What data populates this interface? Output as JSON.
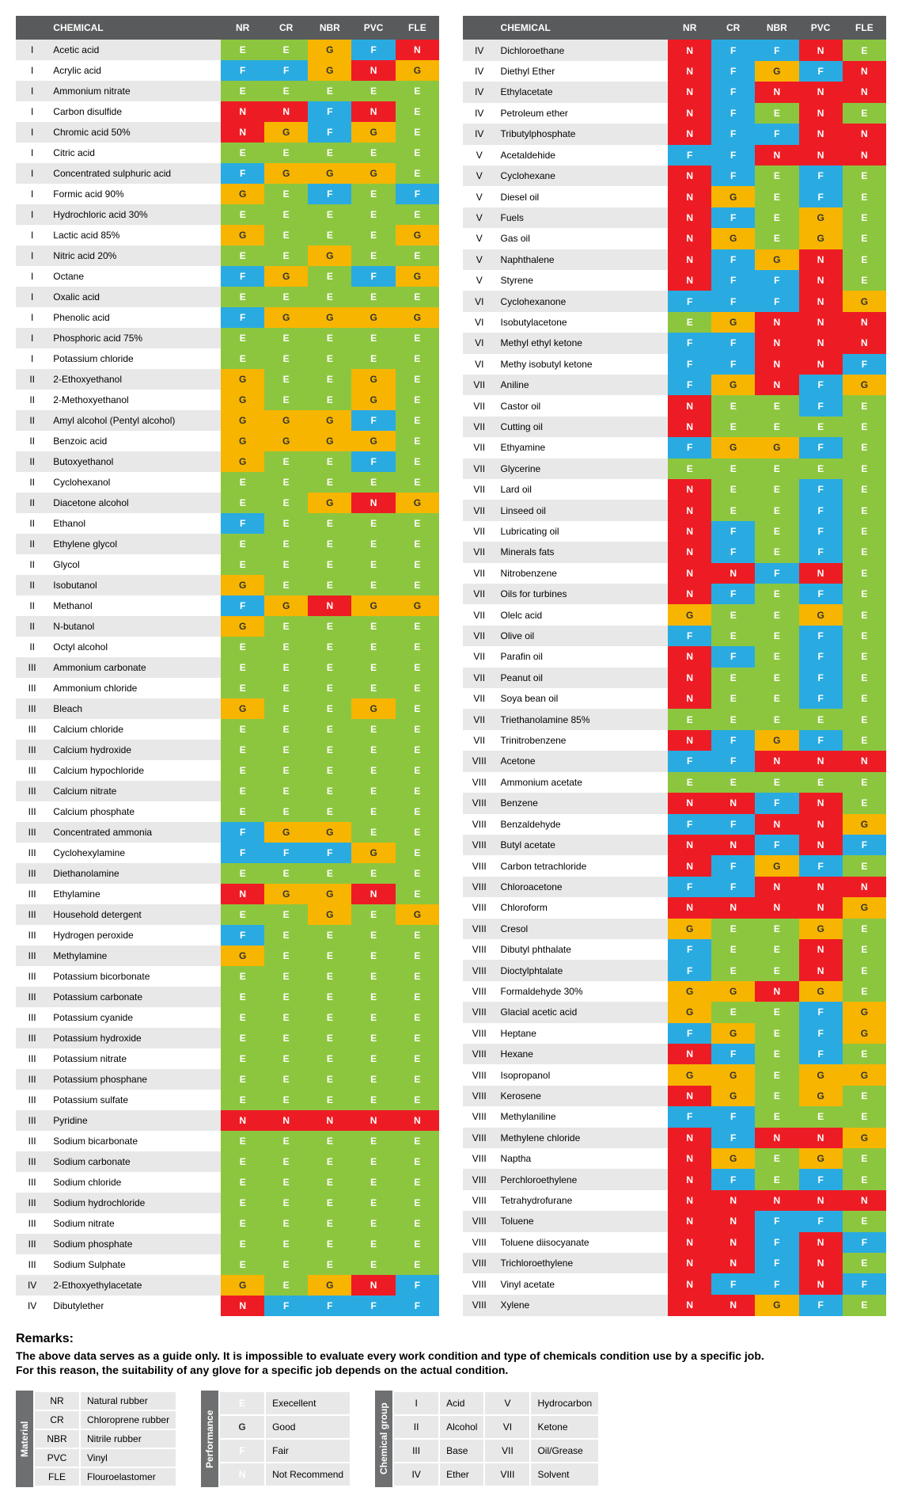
{
  "columns": [
    "NR",
    "CR",
    "NBR",
    "PVC",
    "FLE"
  ],
  "chemLabel": "CHEMICAL",
  "table1": [
    [
      "I",
      "Acetic acid",
      "E",
      "E",
      "G",
      "F",
      "N"
    ],
    [
      "I",
      "Acrylic acid",
      "F",
      "F",
      "G",
      "N",
      "G"
    ],
    [
      "I",
      "Ammonium nitrate",
      "E",
      "E",
      "E",
      "E",
      "E"
    ],
    [
      "I",
      "Carbon disulfide",
      "N",
      "N",
      "F",
      "N",
      "E"
    ],
    [
      "I",
      "Chromic acid 50%",
      "N",
      "G",
      "F",
      "G",
      "E"
    ],
    [
      "I",
      "Citric acid",
      "E",
      "E",
      "E",
      "E",
      "E"
    ],
    [
      "I",
      "Concentrated sulphuric acid",
      "F",
      "G",
      "G",
      "G",
      "E"
    ],
    [
      "I",
      "Formic acid 90%",
      "G",
      "E",
      "F",
      "E",
      "F"
    ],
    [
      "I",
      "Hydrochloric acid 30%",
      "E",
      "E",
      "E",
      "E",
      "E"
    ],
    [
      "I",
      "Lactic acid 85%",
      "G",
      "E",
      "E",
      "E",
      "G"
    ],
    [
      "I",
      "Nitric acid 20%",
      "E",
      "E",
      "G",
      "E",
      "E"
    ],
    [
      "I",
      "Octane",
      "F",
      "G",
      "E",
      "F",
      "G"
    ],
    [
      "I",
      "Oxalic acid",
      "E",
      "E",
      "E",
      "E",
      "E"
    ],
    [
      "I",
      "Phenolic acid",
      "F",
      "G",
      "G",
      "G",
      "G"
    ],
    [
      "I",
      "Phosphoric acid 75%",
      "E",
      "E",
      "E",
      "E",
      "E"
    ],
    [
      "I",
      "Potassium chloride",
      "E",
      "E",
      "E",
      "E",
      "E"
    ],
    [
      "II",
      "2-Ethoxyethanol",
      "G",
      "E",
      "E",
      "G",
      "E"
    ],
    [
      "II",
      "2-Methoxyethanol",
      "G",
      "E",
      "E",
      "G",
      "E"
    ],
    [
      "II",
      "Amyl alcohol (Pentyl alcohol)",
      "G",
      "G",
      "G",
      "F",
      "E"
    ],
    [
      "II",
      "Benzoic acid",
      "G",
      "G",
      "G",
      "G",
      "E"
    ],
    [
      "II",
      "Butoxyethanol",
      "G",
      "E",
      "E",
      "F",
      "E"
    ],
    [
      "II",
      "Cyclohexanol",
      "E",
      "E",
      "E",
      "E",
      "E"
    ],
    [
      "II",
      "Diacetone alcohol",
      "E",
      "E",
      "G",
      "N",
      "G"
    ],
    [
      "II",
      "Ethanol",
      "F",
      "E",
      "E",
      "E",
      "E"
    ],
    [
      "II",
      "Ethylene glycol",
      "E",
      "E",
      "E",
      "E",
      "E"
    ],
    [
      "II",
      "Glycol",
      "E",
      "E",
      "E",
      "E",
      "E"
    ],
    [
      "II",
      " Isobutanol",
      "G",
      "E",
      "E",
      "E",
      "E"
    ],
    [
      "II",
      "Methanol",
      "F",
      "G",
      "N",
      "G",
      "G"
    ],
    [
      "II",
      "N-butanol",
      "G",
      "E",
      "E",
      "E",
      "E"
    ],
    [
      "II",
      "Octyl alcohol",
      "E",
      "E",
      "E",
      "E",
      "E"
    ],
    [
      "III",
      "Ammonium carbonate",
      "E",
      "E",
      "E",
      "E",
      "E"
    ],
    [
      "III",
      "Ammonium chloride",
      "E",
      "E",
      "E",
      "E",
      "E"
    ],
    [
      "III",
      "Bleach",
      "G",
      "E",
      "E",
      "G",
      "E"
    ],
    [
      "III",
      "Calcium chloride",
      "E",
      "E",
      "E",
      "E",
      "E"
    ],
    [
      "III",
      "Calcium hydroxide",
      "E",
      "E",
      "E",
      "E",
      "E"
    ],
    [
      "III",
      "Calcium hypochloride",
      "E",
      "E",
      "E",
      "E",
      "E"
    ],
    [
      "III",
      "Calcium nitrate",
      "E",
      "E",
      "E",
      "E",
      "E"
    ],
    [
      "III",
      "Calcium phosphate",
      "E",
      "E",
      "E",
      "E",
      "E"
    ],
    [
      "III",
      "Concentrated ammonia",
      "F",
      "G",
      "G",
      "E",
      "E"
    ],
    [
      "III",
      "Cyclohexylamine",
      "F",
      "F",
      "F",
      "G",
      "E"
    ],
    [
      "III",
      "Diethanolamine",
      "E",
      "E",
      "E",
      "E",
      "E"
    ],
    [
      "III",
      "Ethylamine",
      "N",
      "G",
      "G",
      "N",
      "E"
    ],
    [
      "III",
      "Household detergent",
      "E",
      "E",
      "G",
      "E",
      "G"
    ],
    [
      "III",
      "Hydrogen peroxide",
      "F",
      "E",
      "E",
      "E",
      "E"
    ],
    [
      "III",
      "Methylamine",
      "G",
      "E",
      "E",
      "E",
      "E"
    ],
    [
      "III",
      "Potassium bicorbonate",
      "E",
      "E",
      "E",
      "E",
      "E"
    ],
    [
      "III",
      "Potassium carbonate",
      "E",
      "E",
      "E",
      "E",
      "E"
    ],
    [
      "III",
      "Potassium cyanide",
      "E",
      "E",
      "E",
      "E",
      "E"
    ],
    [
      "III",
      "Potassium hydroxide",
      "E",
      "E",
      "E",
      "E",
      "E"
    ],
    [
      "III",
      "Potassium nitrate",
      "E",
      "E",
      "E",
      "E",
      "E"
    ],
    [
      "III",
      "Potassium phosphane",
      "E",
      "E",
      "E",
      "E",
      "E"
    ],
    [
      "III",
      "Potassium sulfate",
      "E",
      "E",
      "E",
      "E",
      "E"
    ],
    [
      "III",
      "Pyridine",
      "N",
      "N",
      "N",
      "N",
      "N"
    ],
    [
      "III",
      "Sodium bicarbonate",
      "E",
      "E",
      "E",
      "E",
      "E"
    ],
    [
      "III",
      "Sodium carbonate",
      "E",
      "E",
      "E",
      "E",
      "E"
    ],
    [
      "III",
      "Sodium chloride",
      "E",
      "E",
      "E",
      "E",
      "E"
    ],
    [
      "III",
      "Sodium hydrochloride",
      "E",
      "E",
      "E",
      "E",
      "E"
    ],
    [
      "III",
      "Sodium nitrate",
      "E",
      "E",
      "E",
      "E",
      "E"
    ],
    [
      "III",
      "Sodium phosphate",
      "E",
      "E",
      "E",
      "E",
      "E"
    ],
    [
      "III",
      "Sodium Sulphate",
      "E",
      "E",
      "E",
      "E",
      "E"
    ],
    [
      "IV",
      "2-Ethoxyethylacetate",
      "G",
      "E",
      "G",
      "N",
      "F"
    ],
    [
      "IV",
      "Dibutylether",
      "N",
      "F",
      "F",
      "F",
      "F"
    ]
  ],
  "table2": [
    [
      "IV",
      "Dichloroethane",
      "N",
      "F",
      "F",
      "N",
      "E"
    ],
    [
      "IV",
      "Diethyl Ether",
      "N",
      "F",
      "G",
      "F",
      "N"
    ],
    [
      "IV",
      "Ethylacetate",
      "N",
      "F",
      "N",
      "N",
      "N"
    ],
    [
      "IV",
      "Petroleum ether",
      "N",
      "F",
      "E",
      "N",
      "E"
    ],
    [
      "IV",
      "Tributylphosphate",
      "N",
      "F",
      "F",
      "N",
      "N"
    ],
    [
      "V",
      "Acetaldehide",
      "F",
      "F",
      "N",
      "N",
      "N"
    ],
    [
      "V",
      "Cyclohexane",
      "N",
      "F",
      "E",
      "F",
      "E"
    ],
    [
      "V",
      "Diesel oil",
      "N",
      "G",
      "E",
      "F",
      "E"
    ],
    [
      "V",
      "Fuels",
      "N",
      "F",
      "E",
      "G",
      "E"
    ],
    [
      "V",
      "Gas oil",
      "N",
      "G",
      "E",
      "G",
      "E"
    ],
    [
      "V",
      "Naphthalene",
      "N",
      "F",
      "G",
      "N",
      "E"
    ],
    [
      "V",
      "Styrene",
      "N",
      "F",
      "F",
      "N",
      "E"
    ],
    [
      "VI",
      "Cyclohexanone",
      "F",
      "F",
      "F",
      "N",
      "G"
    ],
    [
      "VI",
      "Isobutylacetone",
      "E",
      "G",
      "N",
      "N",
      "N"
    ],
    [
      "VI",
      "Methyl ethyl ketone",
      "F",
      "F",
      "N",
      "N",
      "N"
    ],
    [
      "VI",
      "Methy isobutyl ketone",
      "F",
      "F",
      "N",
      "N",
      "F"
    ],
    [
      "VII",
      "Aniline",
      "F",
      "G",
      "N",
      "F",
      "G"
    ],
    [
      "VII",
      "Castor oil",
      "N",
      "E",
      "E",
      "F",
      "E"
    ],
    [
      "VII",
      "Cutting oil",
      "N",
      "E",
      "E",
      "E",
      "E"
    ],
    [
      "VII",
      "Ethyamine",
      "F",
      "G",
      "G",
      "F",
      "E"
    ],
    [
      "VII",
      "Glycerine",
      "E",
      "E",
      "E",
      "E",
      "E"
    ],
    [
      "VII",
      "Lard oil",
      "N",
      "E",
      "E",
      "F",
      "E"
    ],
    [
      "VII",
      "Linseed oil",
      "N",
      "E",
      "E",
      "F",
      "E"
    ],
    [
      "VII",
      "Lubricating oil",
      "N",
      "F",
      "E",
      "F",
      "E"
    ],
    [
      "VII",
      "Minerals fats",
      "N",
      "F",
      "E",
      "F",
      "E"
    ],
    [
      "VII",
      "Nitrobenzene",
      "N",
      "N",
      "F",
      "N",
      "E"
    ],
    [
      "VII",
      "Oils for turbines",
      "N",
      "F",
      "E",
      "F",
      "E"
    ],
    [
      "VII",
      "Olelc acid",
      "G",
      "E",
      "E",
      "G",
      "E"
    ],
    [
      "VII",
      "Olive oil",
      "F",
      "E",
      "E",
      "F",
      "E"
    ],
    [
      "VII",
      "Parafin oil",
      "N",
      "F",
      "E",
      "F",
      "E"
    ],
    [
      "VII",
      "Peanut oil",
      "N",
      "E",
      "E",
      "F",
      "E"
    ],
    [
      "VII",
      "Soya bean oil",
      "N",
      "E",
      "E",
      "F",
      "E"
    ],
    [
      "VII",
      "Triethanolamine 85%",
      "E",
      "E",
      "E",
      "E",
      "E"
    ],
    [
      "VII",
      "Trinitrobenzene",
      "N",
      "F",
      "G",
      "F",
      "E"
    ],
    [
      "VIII",
      "Acetone",
      "F",
      "F",
      "N",
      "N",
      "N"
    ],
    [
      "VIII",
      "Ammonium acetate",
      "E",
      "E",
      "E",
      "E",
      "E"
    ],
    [
      "VIII",
      "Benzene",
      "N",
      "N",
      "F",
      "N",
      "E"
    ],
    [
      "VIII",
      "Benzaldehyde",
      "F",
      "F",
      "N",
      "N",
      "G"
    ],
    [
      "VIII",
      "Butyl acetate",
      "N",
      "N",
      "F",
      "N",
      "F"
    ],
    [
      "VIII",
      "Carbon tetrachloride",
      "N",
      "F",
      "G",
      "F",
      "E"
    ],
    [
      "VIII",
      "Chloroacetone",
      "F",
      "F",
      "N",
      "N",
      "N"
    ],
    [
      "VIII",
      "Chloroform",
      "N",
      "N",
      "N",
      "N",
      "G"
    ],
    [
      "VIII",
      "Cresol",
      "G",
      "E",
      "E",
      "G",
      "E"
    ],
    [
      "VIII",
      "Dibutyl phthalate",
      "F",
      "E",
      "E",
      "N",
      "E"
    ],
    [
      "VIII",
      "Dioctylphtalate",
      "F",
      "E",
      "E",
      "N",
      "E"
    ],
    [
      "VIII",
      "Formaldehyde 30%",
      "G",
      "G",
      "N",
      "G",
      "E"
    ],
    [
      "VIII",
      "Glacial acetic acid",
      "G",
      "E",
      "E",
      "F",
      "G"
    ],
    [
      "VIII",
      "Heptane",
      "F",
      "G",
      "E",
      "F",
      "G"
    ],
    [
      "VIII",
      "Hexane",
      "N",
      "F",
      "E",
      "F",
      "E"
    ],
    [
      "VIII",
      "Isopropanol",
      "G",
      "G",
      "E",
      "G",
      "G"
    ],
    [
      "VIII",
      "Kerosene",
      "N",
      "G",
      "E",
      "G",
      "E"
    ],
    [
      "VIII",
      "Methylaniline",
      "F",
      "F",
      "E",
      "E",
      "E"
    ],
    [
      "VIII",
      "Methylene chloride",
      "N",
      "F",
      "N",
      "N",
      "G"
    ],
    [
      "VIII",
      "Naptha",
      "N",
      "G",
      "E",
      "G",
      "E"
    ],
    [
      "VIII",
      "Perchloroethylene",
      "N",
      "F",
      "E",
      "F",
      "E"
    ],
    [
      "VIII",
      "Tetrahydrofurane",
      "N",
      "N",
      "N",
      "N",
      "N"
    ],
    [
      "VIII",
      "Toluene",
      "N",
      "N",
      "F",
      "F",
      "E"
    ],
    [
      "VIII",
      "Toluene diisocyanate",
      "N",
      "N",
      "F",
      "N",
      "F"
    ],
    [
      "VIII",
      "Trichloroethylene",
      "N",
      "N",
      "F",
      "N",
      "E"
    ],
    [
      "VIII",
      "Vinyl acetate",
      "N",
      "F",
      "F",
      "N",
      "F"
    ],
    [
      "VIII",
      "Xylene",
      "N",
      "N",
      "G",
      "F",
      "E"
    ]
  ],
  "remarks": {
    "title": "Remarks:",
    "l1": "The above data serves as a guide only. It is impossible to evaluate every work condition and type of chemicals condition use by a specific job.",
    "l2": "For this reason, the suitability of any glove for a specific job depends on the actual condition."
  },
  "legMaterial": {
    "title": "Material",
    "rows": [
      [
        "NR",
        "Natural rubber"
      ],
      [
        "CR",
        "Chloroprene rubber"
      ],
      [
        "NBR",
        "Nitrile rubber"
      ],
      [
        "PVC",
        "Vinyl"
      ],
      [
        "FLE",
        "Flouroelastomer"
      ]
    ]
  },
  "legPerf": {
    "title": "Performance",
    "rows": [
      [
        "E",
        "Execellent"
      ],
      [
        "G",
        "Good"
      ],
      [
        "F",
        "Fair"
      ],
      [
        "N",
        "Not Recommend"
      ]
    ]
  },
  "legGroup": {
    "title": "Chemical group",
    "rows": [
      [
        "I",
        "Acid",
        "V",
        "Hydrocarbon"
      ],
      [
        "II",
        "Alcohol",
        "VI",
        "Ketone"
      ],
      [
        "III",
        "Base",
        "VII",
        "Oil/Grease"
      ],
      [
        "IV",
        "Ether",
        "VIII",
        "Solvent"
      ]
    ]
  },
  "colors": {
    "E": "#8cc63f",
    "G": "#f7b500",
    "F": "#29abe2",
    "N": "#ed1c24"
  }
}
